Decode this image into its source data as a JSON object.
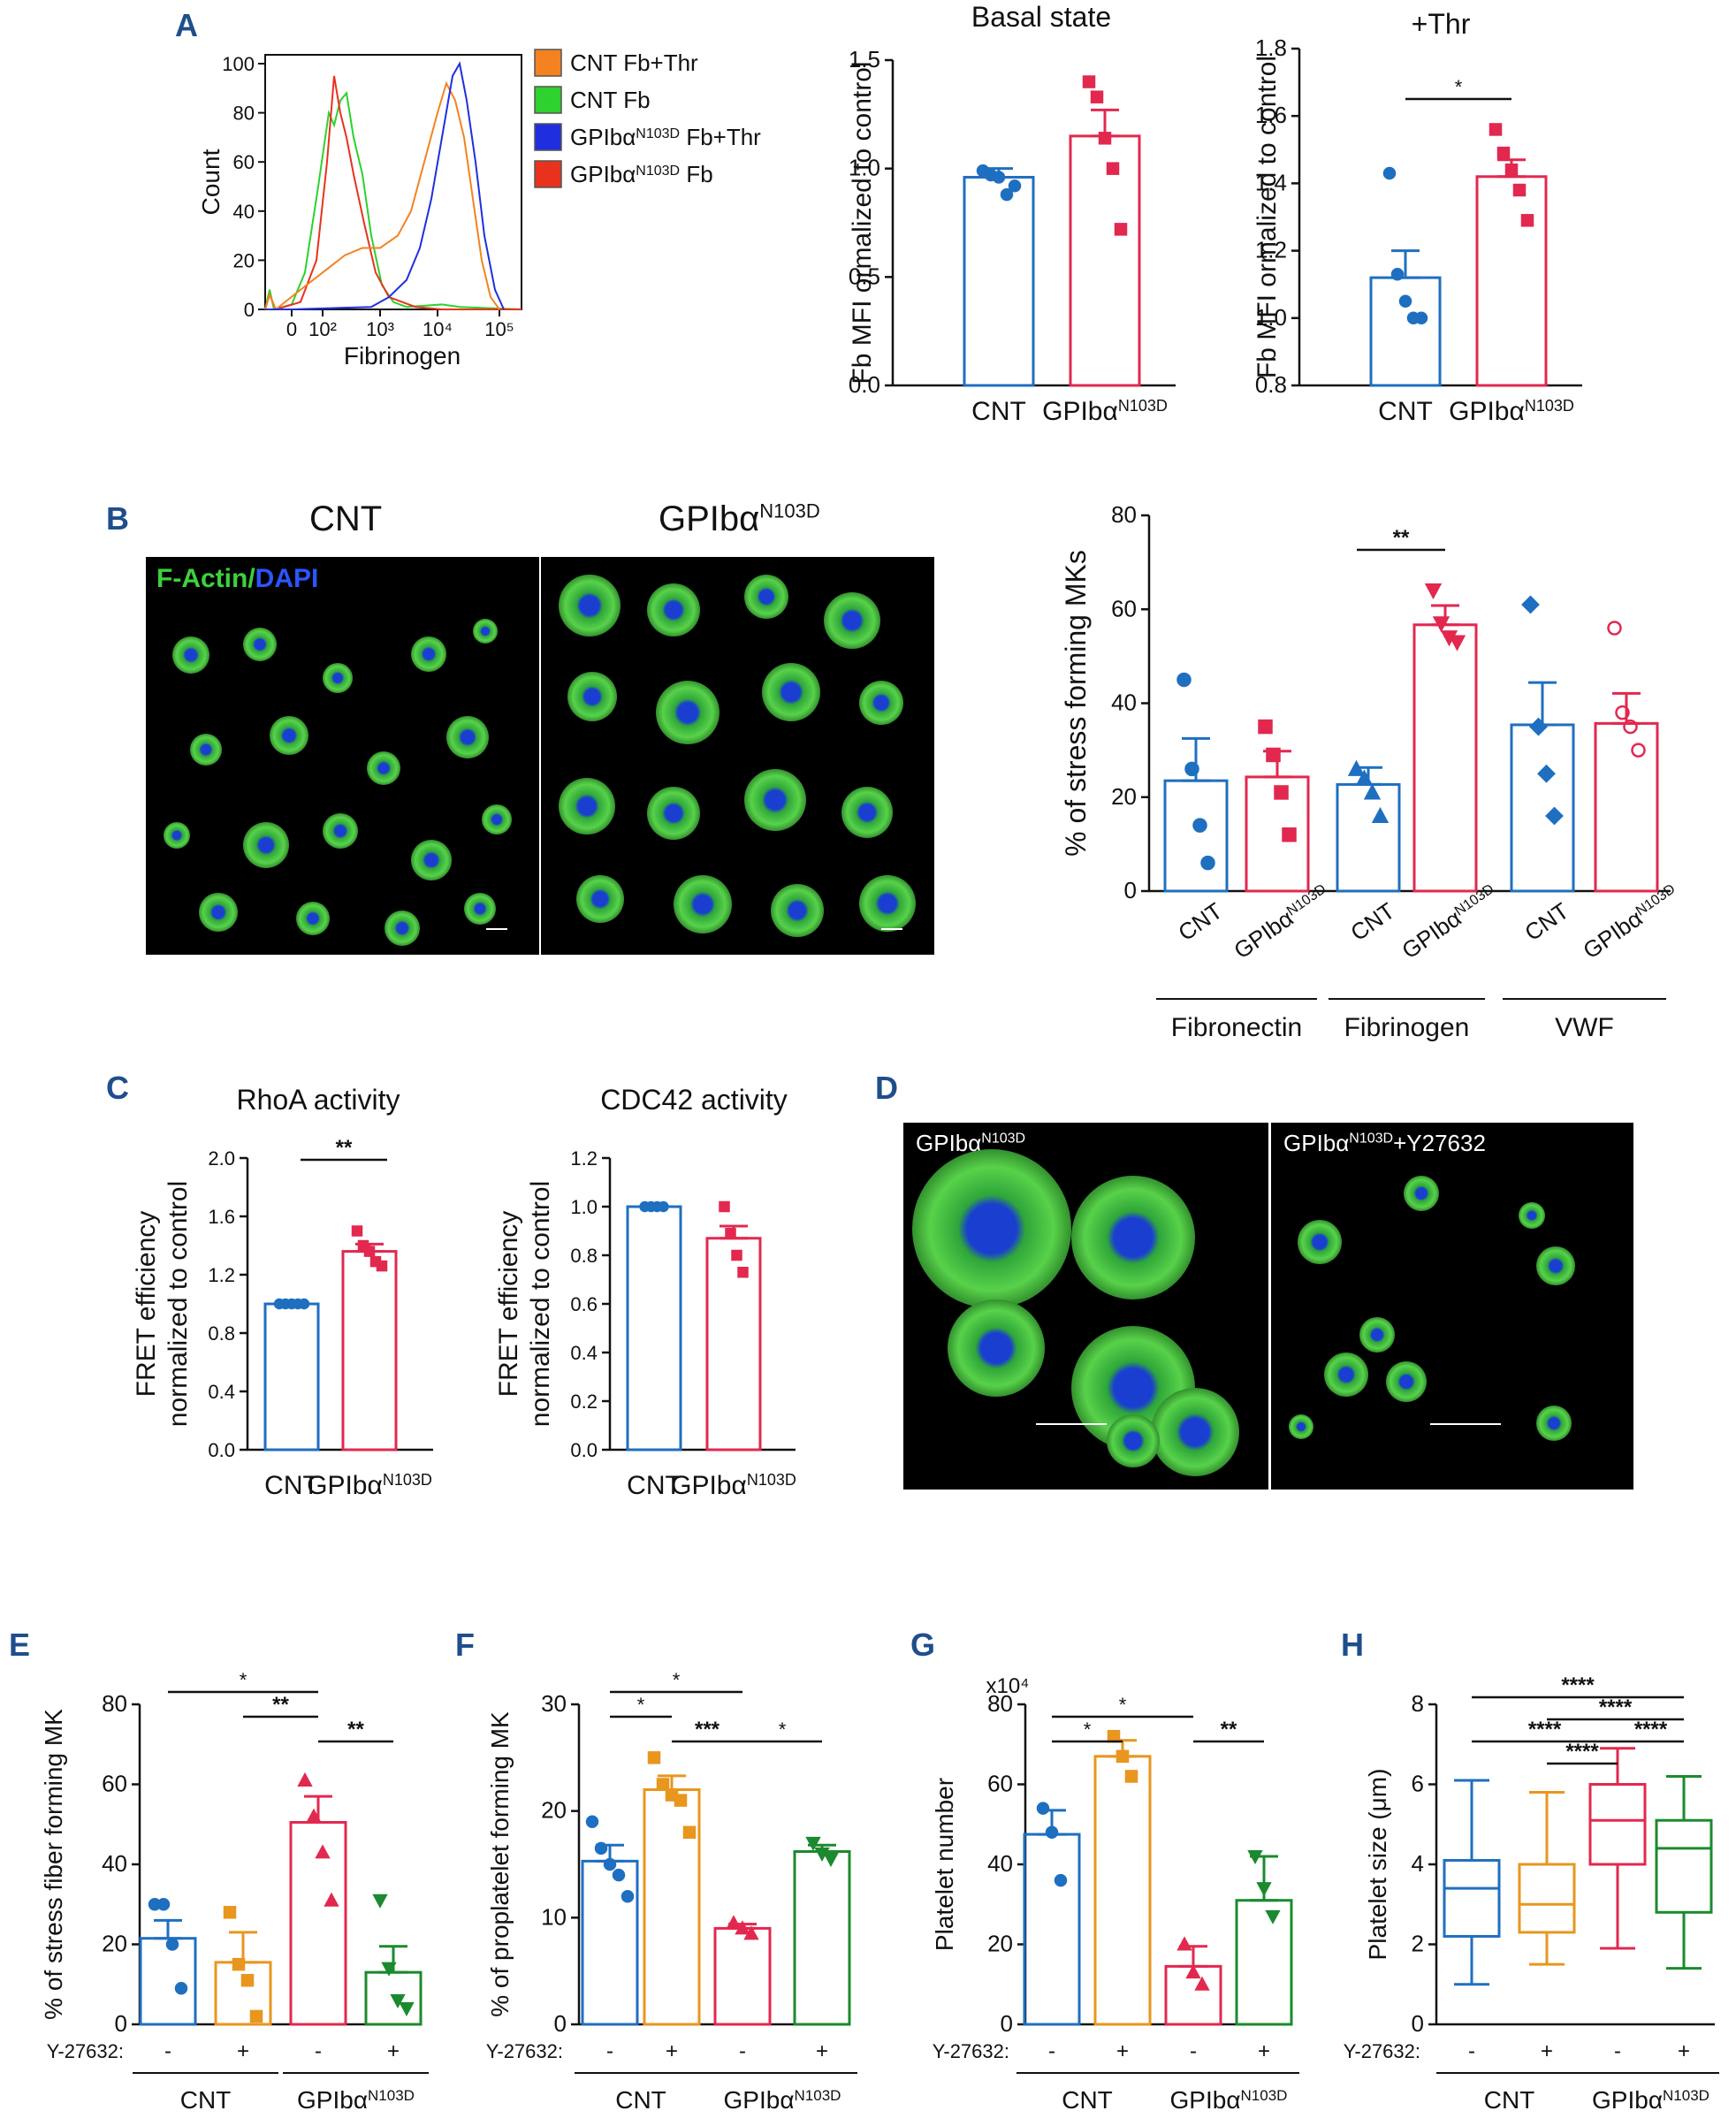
{
  "panel_labels": {
    "A": "A",
    "B": "B",
    "C": "C",
    "D": "D",
    "E": "E",
    "F": "F",
    "G": "G",
    "H": "H"
  },
  "histogram": {
    "ylabel": "Count",
    "xlabel": "Fibrinogen",
    "yticks": [
      "0",
      "20",
      "40",
      "60",
      "80",
      "100"
    ],
    "xticks": [
      "0",
      "10²",
      "10³",
      "10⁴",
      "10⁵"
    ],
    "legend": [
      {
        "label": "CNT Fb+Thr",
        "color": "#f58220"
      },
      {
        "label": "CNT Fb",
        "color": "#2ed12e"
      },
      {
        "label": "GPIbα",
        "sup": "N103D",
        "suffix": " Fb+Thr",
        "color": "#1f2fe0"
      },
      {
        "label": "GPIbα",
        "sup": "N103D",
        "suffix": " Fb",
        "color": "#e8321e"
      }
    ]
  },
  "images": {
    "B_left_title": "CNT",
    "B_right_title": "GPIbα",
    "B_right_sup": "N103D",
    "B_stain_factin": "F-Actin/",
    "B_stain_dapi": "DAPI",
    "D_left": "GPIbα",
    "D_left_sup": "N103D",
    "D_right": "GPIbα",
    "D_right_sup": "N103D",
    "D_right_suffix": "+Y27632"
  },
  "colors": {
    "blue": "#1f6fc0",
    "red": "#e2284f",
    "orange": "#e8961e",
    "green": "#1b8a2e"
  },
  "chart_data": [
    {
      "id": "A1",
      "type": "bar",
      "title": "Basal state",
      "ylabel": "Fb MFI ormalized to control",
      "ylim": [
        0,
        1.5
      ],
      "yticks": [
        "0.0",
        "0.5",
        "1.0",
        "1.5"
      ],
      "categories": [
        "CNT",
        "GPIbα"
      ],
      "cat_sup": [
        "",
        "N103D"
      ],
      "values": [
        0.96,
        1.15
      ],
      "errors": [
        0.04,
        0.12
      ],
      "points": [
        [
          0.99,
          0.97,
          0.96,
          0.88,
          0.92
        ],
        [
          1.4,
          1.33,
          1.14,
          1.0,
          0.72
        ]
      ]
    },
    {
      "id": "A2",
      "type": "bar",
      "title": "+Thr",
      "ylabel": "Fb MFI ormalized to control",
      "ylim": [
        0.8,
        1.8
      ],
      "yticks": [
        "0.8",
        "1.0",
        "1.2",
        "1.4",
        "1.6",
        "1.8"
      ],
      "categories": [
        "CNT",
        "GPIbα"
      ],
      "cat_sup": [
        "",
        "N103D"
      ],
      "values": [
        1.12,
        1.42
      ],
      "errors": [
        0.08,
        0.05
      ],
      "points": [
        [
          1.43,
          1.13,
          1.05,
          1.0,
          1.0
        ],
        [
          1.56,
          1.49,
          1.44,
          1.38,
          1.29
        ]
      ],
      "sig": [
        {
          "a": 0,
          "b": 1,
          "label": "*"
        }
      ]
    },
    {
      "id": "B",
      "type": "bar",
      "ylabel": "% of stress forming MKs",
      "ylim": [
        0,
        80
      ],
      "yticks": [
        "0",
        "20",
        "40",
        "60",
        "80"
      ],
      "categories": [
        "CNT",
        "GPIbα",
        "CNT",
        "GPIbα",
        "CNT",
        "GPIbα"
      ],
      "cat_sup": [
        "",
        "N103D",
        "",
        "N103D",
        "",
        "N103D"
      ],
      "values": [
        23.5,
        24.3,
        22.7,
        56.7,
        35.4,
        35.7
      ],
      "errors": [
        9,
        5.5,
        3.6,
        4.1,
        9,
        6.4
      ],
      "points": [
        [
          45,
          26,
          14,
          6
        ],
        [
          35,
          29,
          21,
          12
        ],
        [
          26,
          24,
          21,
          16
        ],
        [
          64,
          57,
          54,
          53
        ],
        [
          61,
          35,
          25,
          16
        ],
        [
          56,
          38,
          35,
          30
        ]
      ],
      "groups": [
        {
          "label": "Fibronectin",
          "from": 0,
          "to": 1
        },
        {
          "label": "Fibrinogen",
          "from": 2,
          "to": 3
        },
        {
          "label": "VWF",
          "from": 4,
          "to": 5
        }
      ],
      "sig": [
        {
          "a": 2,
          "b": 3,
          "label": "**"
        }
      ]
    },
    {
      "id": "C1",
      "type": "bar",
      "title": "RhoA activity",
      "ylabel": "FRET efficiency normalized to control",
      "ylim": [
        0,
        2
      ],
      "yticks": [
        "0.0",
        "0.4",
        "0.8",
        "1.2",
        "1.6",
        "2.0"
      ],
      "categories": [
        "CNT",
        "GPIbα"
      ],
      "cat_sup": [
        "",
        "N103D"
      ],
      "values": [
        1.0,
        1.36
      ],
      "errors": [
        0,
        0.05
      ],
      "points": [
        [
          1,
          1,
          1,
          1,
          1
        ],
        [
          1.5,
          1.4,
          1.36,
          1.29,
          1.26
        ]
      ],
      "sig": [
        {
          "a": 0,
          "b": 1,
          "label": "**"
        }
      ]
    },
    {
      "id": "C2",
      "type": "bar",
      "title": "CDC42 activity",
      "ylabel": "FRET efficiency normalized to control",
      "ylim": [
        0,
        1.2
      ],
      "yticks": [
        "0.0",
        "0.2",
        "0.4",
        "0.6",
        "0.8",
        "1.0",
        "1.2"
      ],
      "categories": [
        "CNT",
        "GPIbα"
      ],
      "cat_sup": [
        "",
        "N103D"
      ],
      "values": [
        1.0,
        0.87
      ],
      "errors": [
        0,
        0.05
      ],
      "points": [
        [
          1,
          1,
          1,
          1
        ],
        [
          1.0,
          0.89,
          0.8,
          0.73
        ]
      ]
    },
    {
      "id": "E",
      "type": "bar",
      "ylabel": "% of stress fiber forming MK",
      "ylim": [
        0,
        80
      ],
      "yticks": [
        "0",
        "20",
        "40",
        "60",
        "80"
      ],
      "treatment_label": "Y-27632:",
      "treatment": [
        "-",
        "+",
        "-",
        "+"
      ],
      "groups": [
        {
          "label": "CNT",
          "sup": "",
          "from": 0,
          "to": 1
        },
        {
          "label": "GPIbα",
          "sup": "N103D",
          "from": 2,
          "to": 3
        }
      ],
      "values": [
        21.5,
        15.5,
        50.5,
        13
      ],
      "errors": [
        4.5,
        7.5,
        6.5,
        6.5
      ],
      "points": [
        [
          30,
          30,
          20,
          9
        ],
        [
          28,
          15,
          11,
          2
        ],
        [
          61,
          52,
          43,
          31
        ],
        [
          31,
          14,
          6,
          4
        ]
      ],
      "sig": [
        {
          "a": 0,
          "b": 2,
          "label": "*",
          "level": 2
        },
        {
          "a": 1,
          "b": 2,
          "label": "**",
          "level": 1
        },
        {
          "a": 2,
          "b": 3,
          "label": "**",
          "level": 0
        }
      ]
    },
    {
      "id": "F",
      "type": "bar",
      "ylabel": "% of proplatelet forming MK",
      "ylim": [
        0,
        30
      ],
      "yticks": [
        "0",
        "10",
        "20",
        "30"
      ],
      "treatment_label": "Y-27632:",
      "treatment": [
        "-",
        "+",
        "-",
        "+"
      ],
      "groups": [
        {
          "label": "CNT",
          "sup": "",
          "from": 0,
          "to": 1
        },
        {
          "label": "GPIbα",
          "sup": "N103D",
          "from": 2,
          "to": 3
        }
      ],
      "values": [
        15.3,
        22,
        9,
        16.2
      ],
      "errors": [
        1.5,
        1.3,
        0.4,
        0.6
      ],
      "points": [
        [
          19,
          16.5,
          15,
          14,
          12
        ],
        [
          25,
          22.5,
          21.5,
          21,
          18
        ],
        [
          9.5,
          9,
          8.5
        ],
        [
          17,
          16,
          15.5
        ]
      ],
      "sig": [
        {
          "a": 0,
          "b": 2,
          "label": "*",
          "level": 2
        },
        {
          "a": 0,
          "b": 1,
          "label": "*",
          "level": 1
        },
        {
          "a": 1,
          "b": 2,
          "label": "***",
          "level": 0
        },
        {
          "a": 2,
          "b": 3,
          "label": "*",
          "level": 0
        }
      ]
    },
    {
      "id": "G",
      "type": "bar",
      "ylabel": "Platelet number",
      "yscale_label": "x10⁴",
      "ylim": [
        0,
        80
      ],
      "yticks": [
        "0",
        "20",
        "40",
        "60",
        "80"
      ],
      "treatment_label": "Y-27632:",
      "treatment": [
        "-",
        "+",
        "-",
        "+"
      ],
      "groups": [
        {
          "label": "CNT",
          "sup": "",
          "from": 0,
          "to": 1
        },
        {
          "label": "GPIbα",
          "sup": "N103D",
          "from": 2,
          "to": 3
        }
      ],
      "values": [
        47.5,
        67,
        14.5,
        31
      ],
      "errors": [
        6,
        4,
        5,
        11
      ],
      "points": [
        [
          54,
          48,
          36
        ],
        [
          72,
          67,
          62
        ],
        [
          20,
          13,
          10
        ],
        [
          42,
          34,
          27
        ]
      ],
      "sig": [
        {
          "a": 0,
          "b": 2,
          "label": "*",
          "level": 1
        },
        {
          "a": 0,
          "b": 1,
          "label": "*",
          "level": 0
        },
        {
          "a": 2,
          "b": 3,
          "label": "**",
          "level": 0
        }
      ]
    },
    {
      "id": "H",
      "type": "box",
      "ylabel": "Platelet size (μm)",
      "ylim": [
        0,
        8
      ],
      "yticks": [
        "0",
        "2",
        "4",
        "6",
        "8"
      ],
      "treatment_label": "Y-27632:",
      "treatment": [
        "-",
        "+",
        "-",
        "+"
      ],
      "groups": [
        {
          "label": "CNT",
          "sup": "",
          "from": 0,
          "to": 1
        },
        {
          "label": "GPIbα",
          "sup": "N103D",
          "from": 2,
          "to": 3
        }
      ],
      "boxes": [
        {
          "min": 1.0,
          "q1": 2.2,
          "median": 3.4,
          "q3": 4.1,
          "max": 6.1
        },
        {
          "min": 1.5,
          "q1": 2.3,
          "median": 3.0,
          "q3": 4.0,
          "max": 5.8
        },
        {
          "min": 1.9,
          "q1": 4.0,
          "median": 5.1,
          "q3": 6.0,
          "max": 6.9
        },
        {
          "min": 1.4,
          "q1": 2.8,
          "median": 4.4,
          "q3": 5.1,
          "max": 6.2
        }
      ],
      "sig": [
        {
          "a": 0,
          "b": 3,
          "label": "****",
          "level": 3
        },
        {
          "a": 1,
          "b": 3,
          "label": "****",
          "level": 2
        },
        {
          "a": 0,
          "b": 2,
          "label": "****",
          "level": 1
        },
        {
          "a": 2,
          "b": 3,
          "label": "****",
          "level": 1
        },
        {
          "a": 1,
          "b": 2,
          "label": "****",
          "level": 0
        }
      ]
    }
  ]
}
